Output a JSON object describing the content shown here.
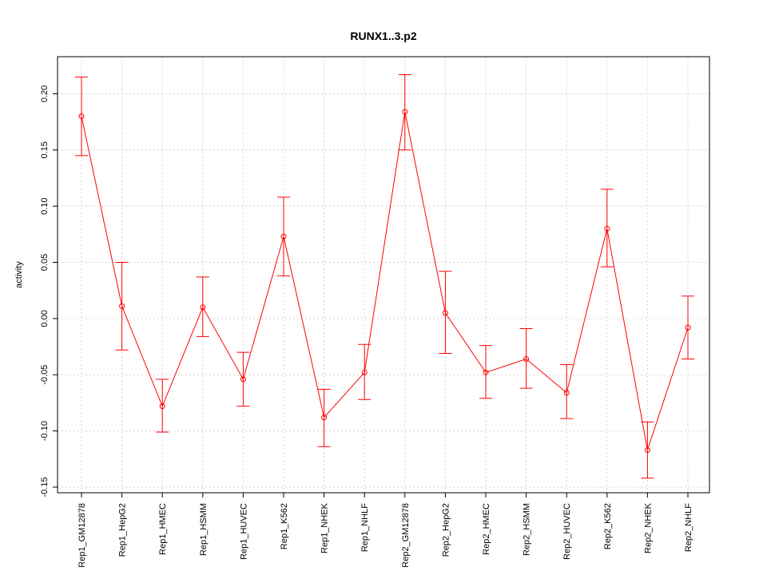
{
  "chart_data": {
    "type": "line",
    "title": "RUNX1..3.p2",
    "xlabel": "",
    "ylabel": "activity",
    "ylim": [
      -0.155,
      0.233
    ],
    "yticks": [
      -0.15,
      -0.1,
      -0.05,
      0.0,
      0.05,
      0.1,
      0.15,
      0.2
    ],
    "ytick_labels": [
      "-0.15",
      "-0.10",
      "-0.05",
      "0.00",
      "0.05",
      "0.10",
      "0.15",
      "0.20"
    ],
    "grid": true,
    "categories": [
      "Rep1_GM12878",
      "Rep1_HepG2",
      "Rep1_HMEC",
      "Rep1_HSMM",
      "Rep1_HUVEC",
      "Rep1_K562",
      "Rep1_NHEK",
      "Rep1_NHLF",
      "Rep2_GM12878",
      "Rep2_HepG2",
      "Rep2_HMEC",
      "Rep2_HSMM",
      "Rep2_HUVEC",
      "Rep2_K562",
      "Rep2_NHEK",
      "Rep2_NHLF"
    ],
    "series": [
      {
        "values": [
          0.18,
          0.011,
          -0.078,
          0.01,
          -0.054,
          0.073,
          -0.088,
          -0.048,
          0.184,
          0.005,
          -0.048,
          -0.036,
          -0.066,
          0.08,
          -0.117,
          -0.008
        ],
        "lower": [
          0.145,
          -0.028,
          -0.101,
          -0.016,
          -0.078,
          0.038,
          -0.114,
          -0.072,
          0.15,
          -0.031,
          -0.071,
          -0.062,
          -0.089,
          0.046,
          -0.142,
          -0.036
        ],
        "upper": [
          0.215,
          0.05,
          -0.054,
          0.037,
          -0.03,
          0.108,
          -0.063,
          -0.023,
          0.217,
          0.042,
          -0.024,
          -0.009,
          -0.041,
          0.115,
          -0.092,
          0.02
        ],
        "color": "#ff0000"
      }
    ]
  }
}
